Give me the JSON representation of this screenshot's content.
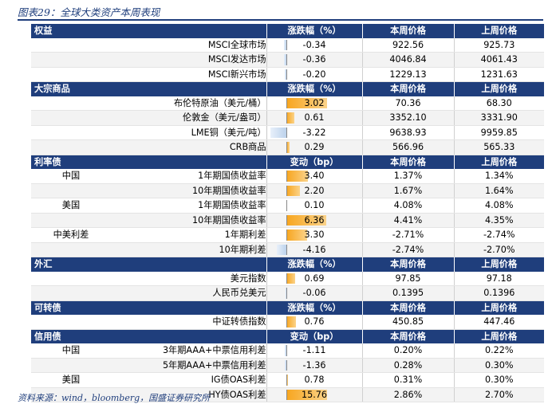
{
  "title": "图表29：全球大类资产本周表现",
  "columns": {
    "cur": "本周价格",
    "prev": "上周价格"
  },
  "sections": [
    {
      "name": "权益",
      "change_header": "涨跌幅（%）",
      "scale": 4.0,
      "rows": [
        {
          "group": "",
          "label": "MSCI全球市场",
          "change": "-0.34",
          "value": -0.34,
          "cur": "922.56",
          "prev": "925.73"
        },
        {
          "group": "",
          "label": "MSCI发达市场",
          "change": "-0.36",
          "value": -0.36,
          "cur": "4046.84",
          "prev": "4061.43"
        },
        {
          "group": "",
          "label": "MSCI新兴市场",
          "change": "-0.20",
          "value": -0.2,
          "cur": "1229.13",
          "prev": "1231.63"
        }
      ]
    },
    {
      "name": "大宗商品",
      "change_header": "涨跌幅（%）",
      "scale": 4.0,
      "rows": [
        {
          "group": "",
          "label": "布伦特原油（美元/桶）",
          "change": "3.02",
          "value": 3.02,
          "cur": "70.36",
          "prev": "68.30"
        },
        {
          "group": "",
          "label": "伦敦金（美元/盎司）",
          "change": "0.61",
          "value": 0.61,
          "cur": "3352.10",
          "prev": "3331.90"
        },
        {
          "group": "",
          "label": "LME铜（美元/吨）",
          "change": "-3.22",
          "value": -3.22,
          "cur": "9638.93",
          "prev": "9959.85"
        },
        {
          "group": "",
          "label": "CRB商品",
          "change": "0.29",
          "value": 0.29,
          "cur": "566.96",
          "prev": "565.33"
        }
      ]
    },
    {
      "name": "利率债",
      "change_header": "变动（bp）",
      "scale": 8.5,
      "rows": [
        {
          "group": "中国",
          "label": "1年期国债收益率",
          "change": "3.40",
          "value": 3.4,
          "cur": "1.37%",
          "prev": "1.34%"
        },
        {
          "group": "",
          "label": "10年期国债收益率",
          "change": "2.20",
          "value": 2.2,
          "cur": "1.67%",
          "prev": "1.64%"
        },
        {
          "group": "美国",
          "label": "1年期国债收益率",
          "change": "0.10",
          "value": 0.1,
          "cur": "4.08%",
          "prev": "4.08%"
        },
        {
          "group": "",
          "label": "10年期国债收益率",
          "change": "6.36",
          "value": 6.36,
          "cur": "4.41%",
          "prev": "4.35%"
        },
        {
          "group": "中美利差",
          "label": "1年期利差",
          "change": "3.30",
          "value": 3.3,
          "cur": "-2.71%",
          "prev": "-2.74%"
        },
        {
          "group": "",
          "label": "10年期利差",
          "change": "-4.16",
          "value": -4.16,
          "cur": "-2.74%",
          "prev": "-2.70%"
        }
      ]
    },
    {
      "name": "外汇",
      "change_header": "涨跌幅（%）",
      "scale": 4.0,
      "rows": [
        {
          "group": "",
          "label": "美元指数",
          "change": "0.69",
          "value": 0.69,
          "cur": "97.85",
          "prev": "97.18"
        },
        {
          "group": "",
          "label": "人民币兑美元",
          "change": "-0.06",
          "value": -0.06,
          "cur": "0.1395",
          "prev": "0.1396"
        }
      ]
    },
    {
      "name": "可转债",
      "change_header": "涨跌幅（%）",
      "scale": 4.0,
      "rows": [
        {
          "group": "",
          "label": "中证转债指数",
          "change": "0.76",
          "value": 0.76,
          "cur": "450.85",
          "prev": "447.46"
        }
      ]
    },
    {
      "name": "信用债",
      "change_header": "变动（bp）",
      "scale": 21.0,
      "rows": [
        {
          "group": "中国",
          "label": "3年期AAA+中票信用利差",
          "change": "-1.11",
          "value": -1.11,
          "cur": "0.20%",
          "prev": "0.22%"
        },
        {
          "group": "",
          "label": "5年期AAA+中票信用利差",
          "change": "-1.36",
          "value": -1.36,
          "cur": "0.28%",
          "prev": "0.30%"
        },
        {
          "group": "美国",
          "label": "IG债OAS利差",
          "change": "0.78",
          "value": 0.78,
          "cur": "0.31%",
          "prev": "0.30%"
        },
        {
          "group": "",
          "label": "HY债OAS利差",
          "change": "15.76",
          "value": 15.76,
          "cur": "2.86%",
          "prev": "2.70%"
        }
      ]
    }
  ],
  "source": "资料来源：wind，bloomberg，国盛证券研究所"
}
